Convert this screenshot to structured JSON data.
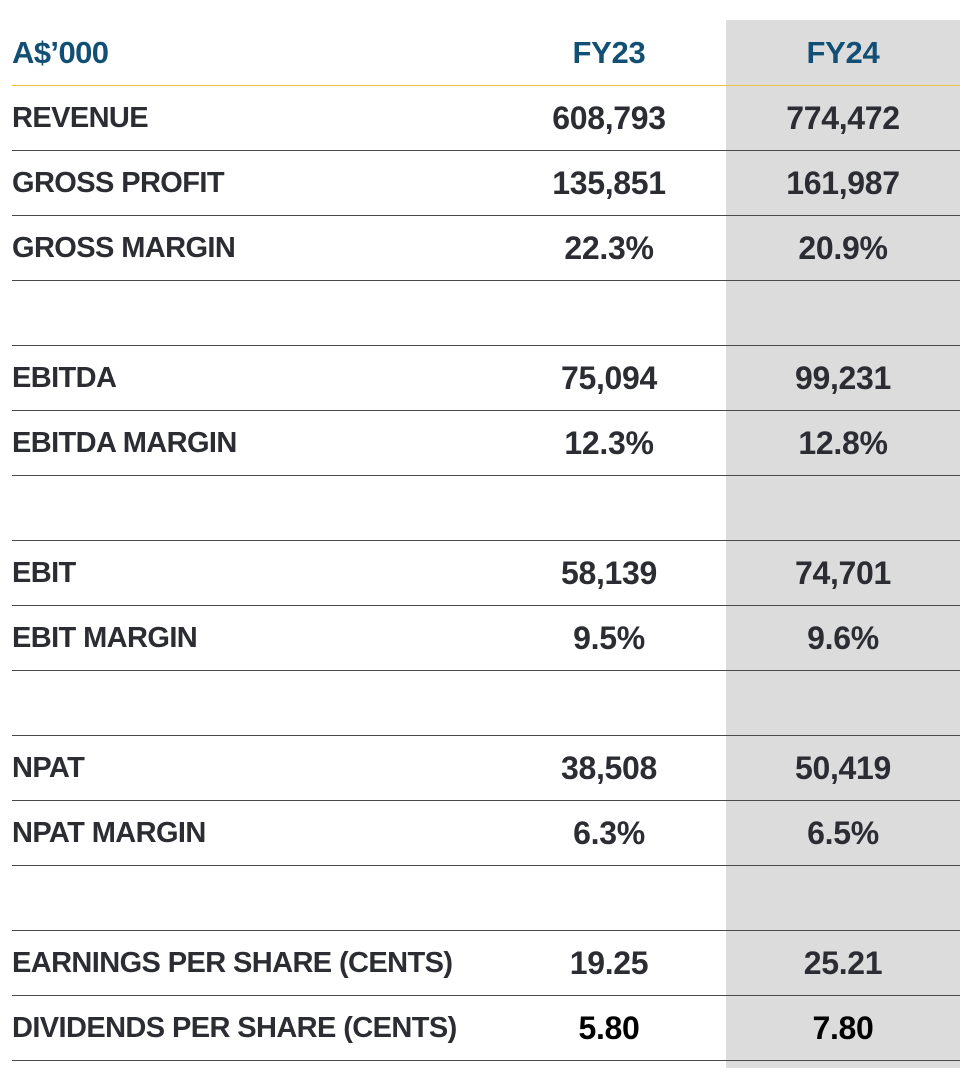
{
  "table": {
    "header": {
      "label": "A$’000",
      "fy23": "FY23",
      "fy24": "FY24"
    },
    "rows": [
      {
        "label": "REVENUE",
        "fy23": "608,793",
        "fy24": "774,472"
      },
      {
        "label": "GROSS PROFIT",
        "fy23": "135,851",
        "fy24": "161,987"
      },
      {
        "label": "GROSS MARGIN",
        "fy23": "22.3%",
        "fy24": "20.9%"
      },
      {
        "label": "EBITDA",
        "fy23": "75,094",
        "fy24": "99,231"
      },
      {
        "label": "EBITDA MARGIN",
        "fy23": "12.3%",
        "fy24": "12.8%"
      },
      {
        "label": "EBIT",
        "fy23": "58,139",
        "fy24": "74,701"
      },
      {
        "label": "EBIT MARGIN",
        "fy23": "9.5%",
        "fy24": "9.6%"
      },
      {
        "label": "NPAT",
        "fy23": "38,508",
        "fy24": "50,419"
      },
      {
        "label": "NPAT MARGIN",
        "fy23": "6.3%",
        "fy24": "6.5%"
      },
      {
        "label": "EARNINGS PER SHARE (CENTS)",
        "fy23": "19.25",
        "fy24": "25.21"
      },
      {
        "label": "DIVIDENDS PER SHARE (CENTS)",
        "fy23": "5.80",
        "fy24": "7.80"
      }
    ]
  },
  "colors": {
    "header_text": "#114f74",
    "body_text": "#2b2d33",
    "highlight_column": "#dcdcdc",
    "header_rule": "#e8c547"
  }
}
